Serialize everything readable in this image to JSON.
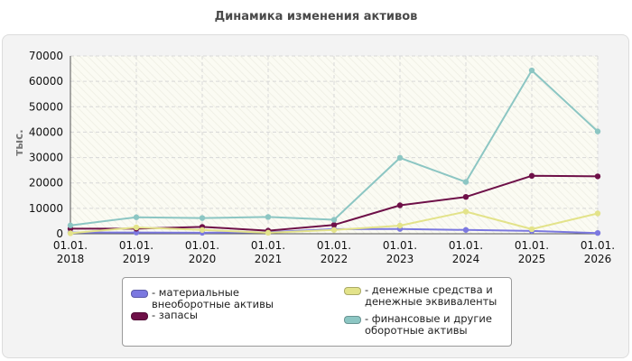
{
  "chart_data": {
    "type": "line",
    "title": "Динамика изменения активов",
    "ylabel": "тыс.",
    "xlabel": "",
    "ylim": [
      0,
      70000
    ],
    "yticks": [
      0,
      10000,
      20000,
      30000,
      40000,
      50000,
      60000,
      70000
    ],
    "x": [
      "01.01.\n2018",
      "01.01.\n2019",
      "01.01.\n2020",
      "01.01.\n2021",
      "01.01.\n2022",
      "01.01.\n2023",
      "01.01.\n2024",
      "01.01.\n2025",
      "01.01.\n2026"
    ],
    "grid": true,
    "legend_position": "bottom",
    "series": [
      {
        "name": "- материальные внеоборотные активы",
        "color": "#7b78e0",
        "values": [
          500,
          500,
          400,
          600,
          1800,
          1900,
          1500,
          1100,
          300
        ]
      },
      {
        "name": "- запасы",
        "color": "#6e1048",
        "values": [
          2000,
          2000,
          2700,
          1200,
          3500,
          11200,
          14500,
          22800,
          22600
        ]
      },
      {
        "name": "- денежные средства и денежные эквиваленты",
        "color": "#e3e38a",
        "values": [
          200,
          2500,
          1500,
          400,
          1500,
          3200,
          8700,
          1800,
          8000
        ]
      },
      {
        "name": "- финансовые и другие оборотные активы",
        "color": "#8cc6c3",
        "values": [
          3300,
          6500,
          6200,
          6600,
          5500,
          29900,
          20400,
          64300,
          40300
        ]
      }
    ]
  },
  "legend": {
    "items": [
      {
        "label": "- материальные внеоборотные активы"
      },
      {
        "label": "- запасы"
      },
      {
        "label": "- денежные средства и денежные эквиваленты"
      },
      {
        "label": "- финансовые и другие оборотные активы"
      }
    ]
  }
}
